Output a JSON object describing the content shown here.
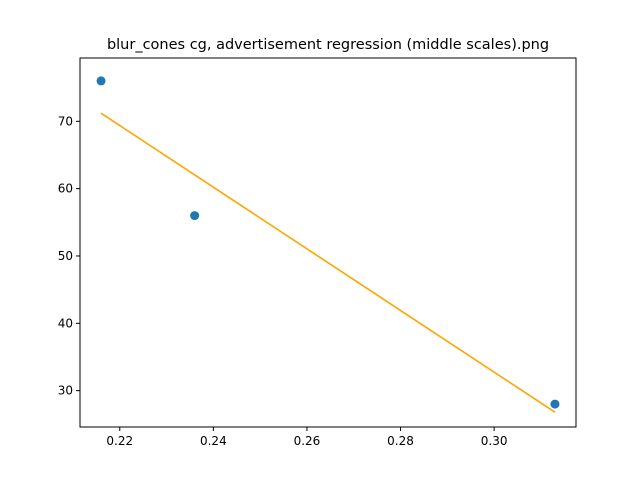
{
  "chart_data": {
    "type": "scatter",
    "title": "blur_cones cg, advertisement regression (middle scales).png",
    "xlabel": "",
    "ylabel": "",
    "xlim": [
      0.2115,
      0.3175
    ],
    "ylim": [
      24.6,
      79.4
    ],
    "x_ticks": [
      0.22,
      0.24,
      0.26,
      0.28,
      0.3
    ],
    "x_tick_labels": [
      "0.22",
      "0.24",
      "0.26",
      "0.28",
      "0.30"
    ],
    "y_ticks": [
      30,
      40,
      50,
      60,
      70
    ],
    "y_tick_labels": [
      "30",
      "40",
      "50",
      "60",
      "70"
    ],
    "grid": false,
    "series": [
      {
        "kind": "scatter",
        "color": "#1f77b4",
        "x": [
          0.216,
          0.236,
          0.313
        ],
        "y": [
          76,
          56,
          28
        ]
      },
      {
        "kind": "line",
        "color": "#ffa500",
        "x": [
          0.216,
          0.313
        ],
        "y": [
          71.2,
          26.8
        ]
      }
    ]
  }
}
